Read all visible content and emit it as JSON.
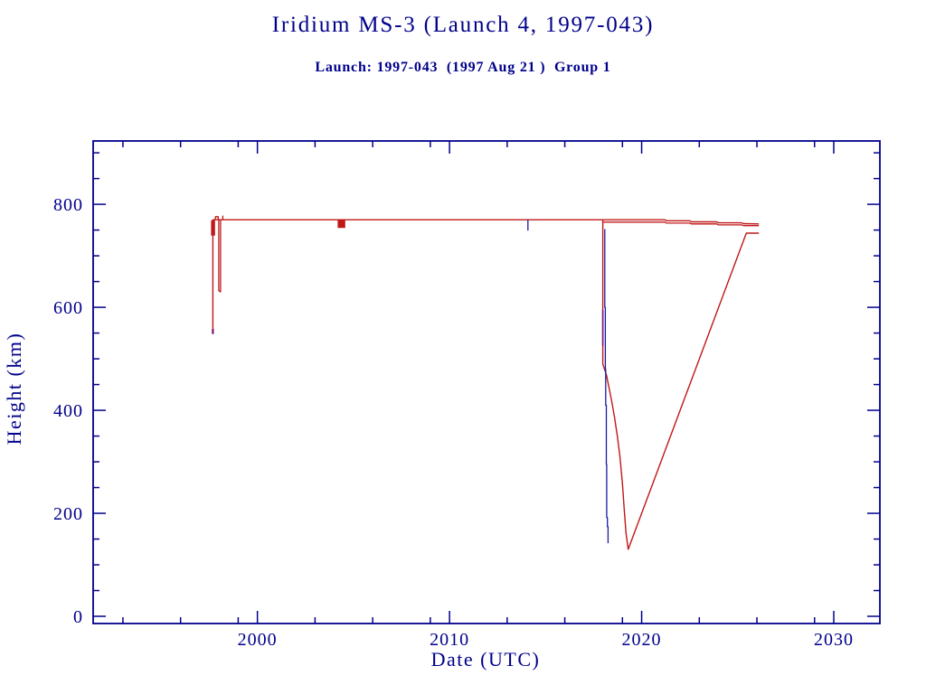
{
  "header": {
    "title": "Iridium MS-3 (Launch 4, 1997-043)",
    "subtitle": "Launch: 1997-043  (1997 Aug 21 )  Group 1"
  },
  "chart_data": {
    "type": "line",
    "title": "Iridium MS-3 (Launch 4, 1997-043)",
    "subtitle": "Launch: 1997-043  (1997 Aug 21 )  Group 1",
    "xlabel": "Date (UTC)",
    "ylabel": "Height (km)",
    "x_range": [
      1991.45,
      2032.4
    ],
    "y_range": [
      -14,
      923
    ],
    "x_major_ticks": [
      2000,
      2010,
      2020,
      2030
    ],
    "x_minor_ticks": [
      1993,
      1996,
      1999,
      2003,
      2006,
      2009,
      2013,
      2016,
      2019,
      2023,
      2026,
      2029
    ],
    "y_major_ticks": [
      0,
      200,
      400,
      600,
      800
    ],
    "y_minor_ticks": [
      50,
      100,
      150,
      250,
      300,
      350,
      450,
      500,
      550,
      650,
      700,
      750,
      850,
      900
    ],
    "grid": false,
    "legend": null,
    "axis_color": "#00008b",
    "colors": {
      "red": "#c01818",
      "blue": "#1a1aa6",
      "overlap_purple": "#7a1878"
    },
    "series": [
      {
        "name": "apogee-height",
        "color": "#c01818",
        "style": "line",
        "width": 1.4,
        "points": [
          [
            1997.68,
            553
          ],
          [
            1997.68,
            770
          ],
          [
            2018.0,
            770
          ],
          [
            2021.2,
            770
          ],
          [
            2021.3,
            768
          ],
          [
            2022.5,
            768
          ],
          [
            2022.6,
            766
          ],
          [
            2023.9,
            766
          ],
          [
            2024.0,
            764
          ],
          [
            2025.2,
            764
          ],
          [
            2025.3,
            762.5
          ],
          [
            2026.1,
            762
          ]
        ]
      },
      {
        "name": "launch-oscillation-block",
        "color": "#c01818",
        "style": "fill",
        "points": [
          [
            1997.61,
            768
          ],
          [
            1997.61,
            740
          ],
          [
            1997.77,
            740
          ],
          [
            1997.77,
            768
          ]
        ]
      },
      {
        "name": "early-dip-1998",
        "color": "#c01818",
        "style": "line",
        "width": 1.3,
        "points": [
          [
            1997.99,
            770
          ],
          [
            1997.99,
            632
          ],
          [
            1998.08,
            630
          ],
          [
            1998.08,
            770
          ]
        ]
      },
      {
        "name": "early-bump-1998",
        "color": "#c01818",
        "style": "line",
        "width": 1.3,
        "points": [
          [
            1997.82,
            770
          ],
          [
            1997.82,
            776
          ],
          [
            1997.96,
            776
          ],
          [
            1997.96,
            770
          ]
        ]
      },
      {
        "name": "spike-1998",
        "color": "#c01818",
        "style": "line",
        "width": 1.3,
        "points": [
          [
            1998.2,
            770
          ],
          [
            1998.2,
            778
          ]
        ]
      },
      {
        "name": "maneuver-blob-2004",
        "color": "#c01818",
        "style": "fill",
        "points": [
          [
            2004.2,
            770
          ],
          [
            2004.2,
            755
          ],
          [
            2004.55,
            755
          ],
          [
            2004.55,
            770
          ]
        ]
      },
      {
        "name": "perigee-height-late",
        "color": "#c01818",
        "style": "line",
        "width": 1.3,
        "points": [
          [
            2018.0,
            765.5
          ],
          [
            2021.2,
            765.5
          ],
          [
            2021.3,
            763.5
          ],
          [
            2022.5,
            763.5
          ],
          [
            2022.6,
            762
          ],
          [
            2023.9,
            762
          ],
          [
            2024.0,
            760
          ],
          [
            2025.2,
            760
          ],
          [
            2025.3,
            758.5
          ],
          [
            2026.1,
            758.5
          ]
        ]
      },
      {
        "name": "decay-and-reboost",
        "color": "#c01818",
        "style": "line",
        "width": 1.4,
        "points": [
          [
            2017.98,
            770
          ],
          [
            2017.98,
            490
          ],
          [
            2018.17,
            468
          ],
          [
            2018.31,
            442
          ],
          [
            2018.45,
            416
          ],
          [
            2018.59,
            386
          ],
          [
            2018.73,
            351
          ],
          [
            2018.87,
            311
          ],
          [
            2019.0,
            258
          ],
          [
            2019.1,
            205
          ],
          [
            2019.19,
            161
          ],
          [
            2019.3,
            130
          ],
          [
            2025.45,
            744
          ],
          [
            2026.1,
            744
          ]
        ]
      },
      {
        "name": "perigee-drop-2018",
        "color": "#1a1aa6",
        "style": "line",
        "width": 1.3,
        "points": [
          [
            2018.08,
            752
          ],
          [
            2018.08,
            600
          ],
          [
            2018.11,
            600
          ],
          [
            2018.11,
            480
          ],
          [
            2018.13,
            480
          ],
          [
            2018.13,
            410
          ],
          [
            2018.16,
            410
          ],
          [
            2018.16,
            295
          ],
          [
            2018.18,
            295
          ],
          [
            2018.18,
            192
          ],
          [
            2018.22,
            192
          ],
          [
            2018.22,
            174
          ],
          [
            2018.25,
            174
          ],
          [
            2018.25,
            142
          ]
        ]
      },
      {
        "name": "perigee-tick-2014",
        "color": "#1a1aa6",
        "style": "line",
        "width": 1.3,
        "points": [
          [
            2014.08,
            770
          ],
          [
            2014.08,
            749
          ]
        ]
      },
      {
        "name": "launch-perigee-dot",
        "color": "#7a1878",
        "style": "line",
        "width": 2.2,
        "points": [
          [
            1997.68,
            548
          ],
          [
            1997.68,
            558
          ]
        ]
      },
      {
        "name": "overlap-segment-2018",
        "color": "#7a1878",
        "style": "line",
        "width": 1.6,
        "points": [
          [
            2017.98,
            595
          ],
          [
            2017.98,
            525
          ]
        ]
      }
    ]
  }
}
